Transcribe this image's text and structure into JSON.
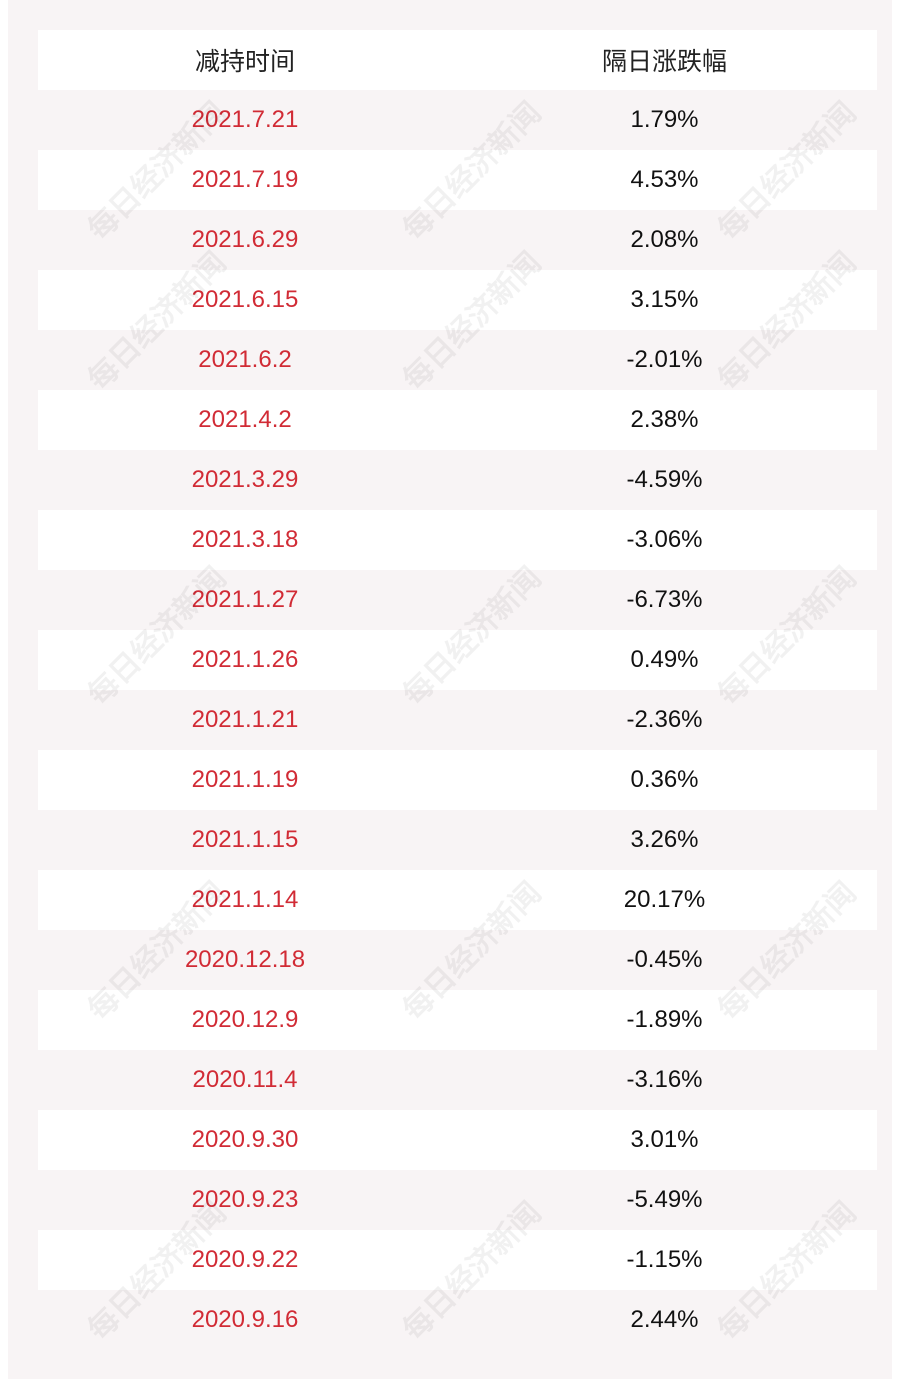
{
  "header": {
    "columns": [
      "减持时间",
      "隔日涨跌幅"
    ]
  },
  "table": {
    "rows": [
      [
        "2021.7.21",
        "1.79%"
      ],
      [
        "2021.7.19",
        "4.53%"
      ],
      [
        "2021.6.29",
        "2.08%"
      ],
      [
        "2021.6.15",
        "3.15%"
      ],
      [
        "2021.6.2",
        "-2.01%"
      ],
      [
        "2021.4.2",
        "2.38%"
      ],
      [
        "2021.3.29",
        "-4.59%"
      ],
      [
        "2021.3.18",
        "-3.06%"
      ],
      [
        "2021.1.27",
        "-6.73%"
      ],
      [
        "2021.1.26",
        "0.49%"
      ],
      [
        "2021.1.21",
        "-2.36%"
      ],
      [
        "2021.1.19",
        "0.36%"
      ],
      [
        "2021.1.15",
        "3.26%"
      ],
      [
        "2021.1.14",
        "20.17%"
      ],
      [
        "2020.12.18",
        "-0.45%"
      ],
      [
        "2020.12.9",
        "-1.89%"
      ],
      [
        "2020.11.4",
        "-3.16%"
      ],
      [
        "2020.9.30",
        "3.01%"
      ],
      [
        "2020.9.23",
        "-5.49%"
      ],
      [
        "2020.9.22",
        "-1.15%"
      ],
      [
        "2020.9.16",
        "2.44%"
      ]
    ]
  },
  "watermark": "每日经济新闻"
}
